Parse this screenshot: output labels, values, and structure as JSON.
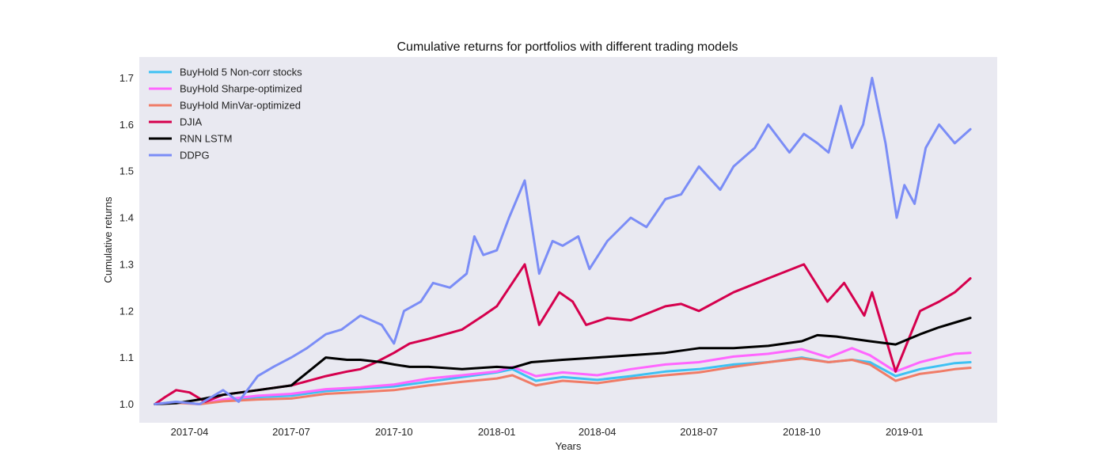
{
  "chart_data": {
    "type": "line",
    "title": "Cumulative returns for portfolios with different trading models",
    "xlabel": "Years",
    "ylabel": "Cumulative returns",
    "xlim": [
      "2017-02-15",
      "2019-03-25"
    ],
    "ylim": [
      0.96,
      1.745
    ],
    "x_ticks": [
      "2017-04",
      "2017-07",
      "2017-10",
      "2018-01",
      "2018-04",
      "2018-07",
      "2018-10",
      "2019-01"
    ],
    "y_ticks": [
      1.0,
      1.1,
      1.2,
      1.3,
      1.4,
      1.5,
      1.6,
      1.7
    ],
    "y_tick_labels": [
      "1.0",
      "1.1",
      "1.2",
      "1.3",
      "1.4",
      "1.5",
      "1.6",
      "1.7"
    ],
    "grid": false,
    "background": "#e9e9f1",
    "legend_position": "upper-left",
    "series": [
      {
        "name": "BuyHold 5 Non-corr stocks",
        "color": "#3ec1f3",
        "points": [
          [
            "2017-03-01",
            1.0
          ],
          [
            "2017-03-20",
            1.005
          ],
          [
            "2017-04-10",
            1.0
          ],
          [
            "2017-05-01",
            1.008
          ],
          [
            "2017-06-01",
            1.015
          ],
          [
            "2017-07-01",
            1.018
          ],
          [
            "2017-08-01",
            1.028
          ],
          [
            "2017-09-01",
            1.033
          ],
          [
            "2017-10-01",
            1.038
          ],
          [
            "2017-11-01",
            1.048
          ],
          [
            "2017-12-01",
            1.058
          ],
          [
            "2018-01-01",
            1.068
          ],
          [
            "2018-01-15",
            1.075
          ],
          [
            "2018-02-05",
            1.05
          ],
          [
            "2018-03-01",
            1.058
          ],
          [
            "2018-04-01",
            1.052
          ],
          [
            "2018-05-01",
            1.06
          ],
          [
            "2018-06-01",
            1.07
          ],
          [
            "2018-07-01",
            1.075
          ],
          [
            "2018-08-01",
            1.085
          ],
          [
            "2018-09-01",
            1.09
          ],
          [
            "2018-10-01",
            1.1
          ],
          [
            "2018-10-25",
            1.09
          ],
          [
            "2018-11-15",
            1.095
          ],
          [
            "2018-12-01",
            1.09
          ],
          [
            "2018-12-24",
            1.06
          ],
          [
            "2019-01-15",
            1.075
          ],
          [
            "2019-02-01",
            1.082
          ],
          [
            "2019-02-15",
            1.088
          ],
          [
            "2019-03-01",
            1.09
          ]
        ]
      },
      {
        "name": "BuyHold Sharpe-optimized",
        "color": "#ff66ff",
        "points": [
          [
            "2017-03-01",
            1.0
          ],
          [
            "2017-03-20",
            1.004
          ],
          [
            "2017-04-10",
            1.0
          ],
          [
            "2017-05-01",
            1.01
          ],
          [
            "2017-06-01",
            1.018
          ],
          [
            "2017-07-01",
            1.022
          ],
          [
            "2017-08-01",
            1.032
          ],
          [
            "2017-09-01",
            1.036
          ],
          [
            "2017-10-01",
            1.042
          ],
          [
            "2017-11-01",
            1.055
          ],
          [
            "2017-12-01",
            1.062
          ],
          [
            "2018-01-01",
            1.07
          ],
          [
            "2018-01-15",
            1.08
          ],
          [
            "2018-02-05",
            1.06
          ],
          [
            "2018-03-01",
            1.068
          ],
          [
            "2018-04-01",
            1.062
          ],
          [
            "2018-05-01",
            1.075
          ],
          [
            "2018-06-01",
            1.085
          ],
          [
            "2018-07-01",
            1.09
          ],
          [
            "2018-08-01",
            1.102
          ],
          [
            "2018-09-01",
            1.108
          ],
          [
            "2018-10-01",
            1.118
          ],
          [
            "2018-10-25",
            1.1
          ],
          [
            "2018-11-15",
            1.12
          ],
          [
            "2018-12-01",
            1.105
          ],
          [
            "2018-12-24",
            1.07
          ],
          [
            "2019-01-15",
            1.09
          ],
          [
            "2019-02-01",
            1.1
          ],
          [
            "2019-02-15",
            1.108
          ],
          [
            "2019-03-01",
            1.11
          ]
        ]
      },
      {
        "name": "BuyHold MinVar-optimized",
        "color": "#f07c67",
        "points": [
          [
            "2017-03-01",
            1.0
          ],
          [
            "2017-03-20",
            1.003
          ],
          [
            "2017-04-10",
            1.0
          ],
          [
            "2017-05-01",
            1.006
          ],
          [
            "2017-06-01",
            1.01
          ],
          [
            "2017-07-01",
            1.012
          ],
          [
            "2017-08-01",
            1.022
          ],
          [
            "2017-09-01",
            1.026
          ],
          [
            "2017-10-01",
            1.03
          ],
          [
            "2017-11-01",
            1.04
          ],
          [
            "2017-12-01",
            1.048
          ],
          [
            "2018-01-01",
            1.055
          ],
          [
            "2018-01-15",
            1.062
          ],
          [
            "2018-02-05",
            1.04
          ],
          [
            "2018-03-01",
            1.05
          ],
          [
            "2018-04-01",
            1.045
          ],
          [
            "2018-05-01",
            1.055
          ],
          [
            "2018-06-01",
            1.062
          ],
          [
            "2018-07-01",
            1.068
          ],
          [
            "2018-08-01",
            1.08
          ],
          [
            "2018-09-01",
            1.09
          ],
          [
            "2018-10-01",
            1.098
          ],
          [
            "2018-10-25",
            1.09
          ],
          [
            "2018-11-15",
            1.095
          ],
          [
            "2018-12-01",
            1.085
          ],
          [
            "2018-12-24",
            1.05
          ],
          [
            "2019-01-15",
            1.065
          ],
          [
            "2019-02-01",
            1.07
          ],
          [
            "2019-02-15",
            1.075
          ],
          [
            "2019-03-01",
            1.078
          ]
        ]
      },
      {
        "name": "DJIA",
        "color": "#d5004d",
        "points": [
          [
            "2017-03-01",
            1.0
          ],
          [
            "2017-03-10",
            1.015
          ],
          [
            "2017-03-20",
            1.03
          ],
          [
            "2017-04-01",
            1.025
          ],
          [
            "2017-04-15",
            1.005
          ],
          [
            "2017-05-01",
            1.02
          ],
          [
            "2017-06-01",
            1.03
          ],
          [
            "2017-07-01",
            1.04
          ],
          [
            "2017-08-01",
            1.06
          ],
          [
            "2017-08-20",
            1.07
          ],
          [
            "2017-09-01",
            1.075
          ],
          [
            "2017-09-15",
            1.09
          ],
          [
            "2017-10-01",
            1.11
          ],
          [
            "2017-10-15",
            1.13
          ],
          [
            "2017-11-01",
            1.14
          ],
          [
            "2017-12-01",
            1.16
          ],
          [
            "2017-12-20",
            1.19
          ],
          [
            "2018-01-01",
            1.21
          ],
          [
            "2018-01-15",
            1.26
          ],
          [
            "2018-01-26",
            1.3
          ],
          [
            "2018-02-08",
            1.17
          ],
          [
            "2018-02-26",
            1.24
          ],
          [
            "2018-03-10",
            1.22
          ],
          [
            "2018-03-22",
            1.17
          ],
          [
            "2018-04-10",
            1.185
          ],
          [
            "2018-05-01",
            1.18
          ],
          [
            "2018-06-01",
            1.21
          ],
          [
            "2018-06-15",
            1.215
          ],
          [
            "2018-07-01",
            1.2
          ],
          [
            "2018-08-01",
            1.24
          ],
          [
            "2018-09-01",
            1.27
          ],
          [
            "2018-10-03",
            1.3
          ],
          [
            "2018-10-24",
            1.22
          ],
          [
            "2018-11-08",
            1.26
          ],
          [
            "2018-11-26",
            1.19
          ],
          [
            "2018-12-03",
            1.24
          ],
          [
            "2018-12-24",
            1.07
          ],
          [
            "2019-01-15",
            1.2
          ],
          [
            "2019-02-01",
            1.22
          ],
          [
            "2019-02-15",
            1.24
          ],
          [
            "2019-03-01",
            1.27
          ]
        ]
      },
      {
        "name": "RNN LSTM",
        "color": "#000000",
        "points": [
          [
            "2017-03-01",
            1.0
          ],
          [
            "2017-03-20",
            1.002
          ],
          [
            "2017-04-10",
            1.01
          ],
          [
            "2017-05-01",
            1.02
          ],
          [
            "2017-06-01",
            1.03
          ],
          [
            "2017-07-01",
            1.04
          ],
          [
            "2017-08-01",
            1.1
          ],
          [
            "2017-08-20",
            1.095
          ],
          [
            "2017-09-01",
            1.095
          ],
          [
            "2017-09-20",
            1.09
          ],
          [
            "2017-10-01",
            1.085
          ],
          [
            "2017-10-15",
            1.08
          ],
          [
            "2017-11-01",
            1.08
          ],
          [
            "2017-12-01",
            1.075
          ],
          [
            "2018-01-01",
            1.08
          ],
          [
            "2018-01-15",
            1.078
          ],
          [
            "2018-02-01",
            1.09
          ],
          [
            "2018-03-01",
            1.095
          ],
          [
            "2018-04-01",
            1.1
          ],
          [
            "2018-05-01",
            1.105
          ],
          [
            "2018-06-01",
            1.11
          ],
          [
            "2018-07-01",
            1.12
          ],
          [
            "2018-08-01",
            1.12
          ],
          [
            "2018-09-01",
            1.125
          ],
          [
            "2018-10-01",
            1.135
          ],
          [
            "2018-10-15",
            1.148
          ],
          [
            "2018-11-01",
            1.145
          ],
          [
            "2018-12-01",
            1.135
          ],
          [
            "2018-12-24",
            1.128
          ],
          [
            "2019-01-15",
            1.15
          ],
          [
            "2019-02-01",
            1.165
          ],
          [
            "2019-02-15",
            1.175
          ],
          [
            "2019-03-01",
            1.185
          ]
        ]
      },
      {
        "name": "DDPG",
        "color": "#7b8df6",
        "points": [
          [
            "2017-03-01",
            1.0
          ],
          [
            "2017-03-20",
            1.005
          ],
          [
            "2017-04-10",
            1.0
          ],
          [
            "2017-05-01",
            1.03
          ],
          [
            "2017-05-15",
            1.005
          ],
          [
            "2017-06-01",
            1.06
          ],
          [
            "2017-06-15",
            1.08
          ],
          [
            "2017-07-01",
            1.1
          ],
          [
            "2017-07-15",
            1.12
          ],
          [
            "2017-08-01",
            1.15
          ],
          [
            "2017-08-15",
            1.16
          ],
          [
            "2017-09-01",
            1.19
          ],
          [
            "2017-09-20",
            1.17
          ],
          [
            "2017-10-01",
            1.13
          ],
          [
            "2017-10-10",
            1.2
          ],
          [
            "2017-10-25",
            1.22
          ],
          [
            "2017-11-05",
            1.26
          ],
          [
            "2017-11-20",
            1.25
          ],
          [
            "2017-12-05",
            1.28
          ],
          [
            "2017-12-12",
            1.36
          ],
          [
            "2017-12-20",
            1.32
          ],
          [
            "2018-01-01",
            1.33
          ],
          [
            "2018-01-12",
            1.4
          ],
          [
            "2018-01-26",
            1.48
          ],
          [
            "2018-02-08",
            1.28
          ],
          [
            "2018-02-20",
            1.35
          ],
          [
            "2018-03-01",
            1.34
          ],
          [
            "2018-03-15",
            1.36
          ],
          [
            "2018-03-25",
            1.29
          ],
          [
            "2018-04-10",
            1.35
          ],
          [
            "2018-05-01",
            1.4
          ],
          [
            "2018-05-15",
            1.38
          ],
          [
            "2018-06-01",
            1.44
          ],
          [
            "2018-06-15",
            1.45
          ],
          [
            "2018-07-01",
            1.51
          ],
          [
            "2018-07-20",
            1.46
          ],
          [
            "2018-08-01",
            1.51
          ],
          [
            "2018-08-20",
            1.55
          ],
          [
            "2018-09-01",
            1.6
          ],
          [
            "2018-09-20",
            1.54
          ],
          [
            "2018-10-03",
            1.58
          ],
          [
            "2018-10-15",
            1.56
          ],
          [
            "2018-10-25",
            1.54
          ],
          [
            "2018-11-05",
            1.64
          ],
          [
            "2018-11-15",
            1.55
          ],
          [
            "2018-11-25",
            1.6
          ],
          [
            "2018-12-03",
            1.7
          ],
          [
            "2018-12-15",
            1.56
          ],
          [
            "2018-12-25",
            1.4
          ],
          [
            "2019-01-01",
            1.47
          ],
          [
            "2019-01-10",
            1.43
          ],
          [
            "2019-01-20",
            1.55
          ],
          [
            "2019-02-01",
            1.6
          ],
          [
            "2019-02-15",
            1.56
          ],
          [
            "2019-03-01",
            1.59
          ]
        ]
      }
    ]
  }
}
